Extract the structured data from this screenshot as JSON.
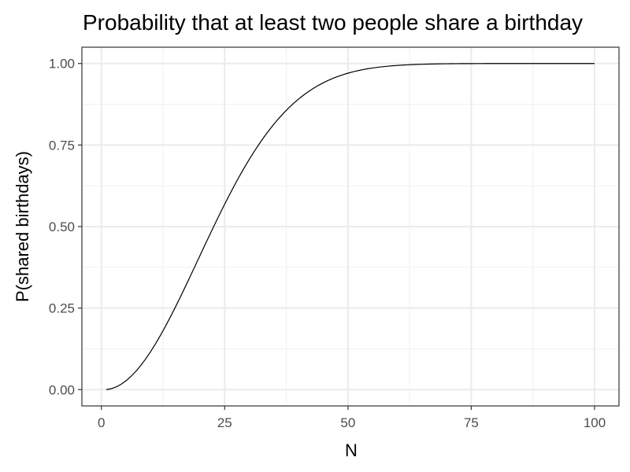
{
  "chart_data": {
    "type": "line",
    "title": "Probability that at least two people share a birthday",
    "xlabel": "N",
    "ylabel": "P(shared birthdays)",
    "xlim": [
      1,
      100
    ],
    "ylim": [
      0,
      1
    ],
    "xticks": [
      "0",
      "25",
      "50",
      "75",
      "100"
    ],
    "yticks": [
      "0.00",
      "0.25",
      "0.50",
      "0.75",
      "1.00"
    ],
    "grid": true,
    "legend": "none",
    "line_color": "#000000",
    "series": [
      {
        "x": [
          1,
          2,
          3,
          4,
          5,
          6,
          7,
          8,
          9,
          10,
          11,
          12,
          13,
          14,
          15,
          16,
          17,
          18,
          19,
          20,
          21,
          22,
          23,
          24,
          25,
          26,
          27,
          28,
          29,
          30,
          31,
          32,
          33,
          34,
          35,
          36,
          37,
          38,
          39,
          40,
          41,
          42,
          43,
          44,
          45,
          46,
          47,
          48,
          49,
          50,
          51,
          52,
          53,
          54,
          55,
          56,
          57,
          58,
          59,
          60,
          61,
          62,
          63,
          64,
          65,
          66,
          67,
          68,
          69,
          70,
          71,
          72,
          73,
          74,
          75,
          76,
          77,
          78,
          79,
          80,
          81,
          82,
          83,
          84,
          85,
          86,
          87,
          88,
          89,
          90,
          91,
          92,
          93,
          94,
          95,
          96,
          97,
          98,
          99,
          100
        ],
        "y": [
          0.0,
          0.0027,
          0.0082,
          0.0164,
          0.0271,
          0.0405,
          0.0562,
          0.0743,
          0.0946,
          0.1169,
          0.1411,
          0.167,
          0.1944,
          0.2231,
          0.2529,
          0.2836,
          0.315,
          0.3469,
          0.3791,
          0.4114,
          0.4437,
          0.4757,
          0.5073,
          0.5383,
          0.5687,
          0.5982,
          0.6269,
          0.6545,
          0.681,
          0.7063,
          0.7305,
          0.7533,
          0.775,
          0.7953,
          0.8144,
          0.8322,
          0.8487,
          0.8641,
          0.8782,
          0.8912,
          0.9032,
          0.914,
          0.9239,
          0.9329,
          0.941,
          0.9483,
          0.9548,
          0.9606,
          0.9658,
          0.9704,
          0.9744,
          0.978,
          0.9811,
          0.9839,
          0.9863,
          0.9883,
          0.9901,
          0.9917,
          0.993,
          0.9941,
          0.9951,
          0.9959,
          0.9966,
          0.9972,
          0.9977,
          0.9981,
          0.9984,
          0.9987,
          0.999,
          0.9992,
          0.9993,
          0.9995,
          0.9996,
          0.9996,
          0.9997,
          0.9998,
          0.9998,
          0.9999,
          0.9999,
          0.9999,
          0.9999,
          0.9999,
          1.0,
          1.0,
          1.0,
          1.0,
          1.0,
          1.0,
          1.0,
          1.0,
          1.0,
          1.0,
          1.0,
          1.0,
          1.0,
          1.0,
          1.0,
          1.0,
          1.0,
          1.0
        ]
      }
    ]
  }
}
